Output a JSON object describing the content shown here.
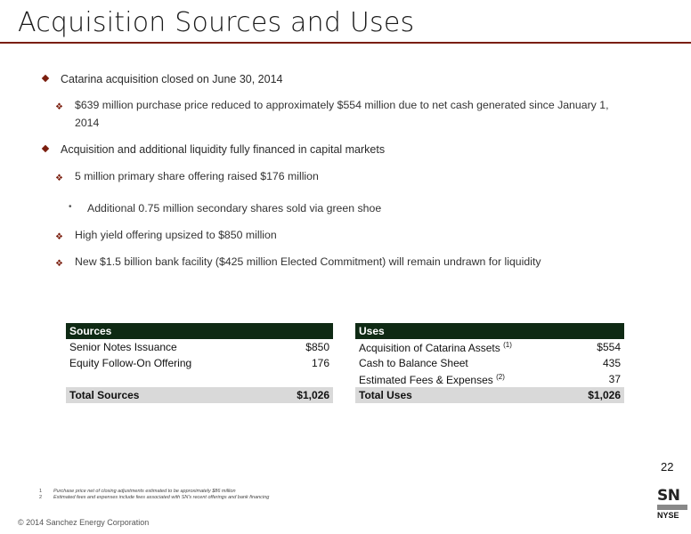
{
  "title": "Acquisition Sources and Uses",
  "bullets": {
    "b1": "Catarina acquisition closed on June 30, 2014",
    "b1a_line1": "$639 million purchase price reduced to approximately $554 million due to net cash generated since January 1,",
    "b1a_line2": "2014",
    "b2": "Acquisition and additional liquidity fully financed in capital markets",
    "b2a": "5 million primary share offering raised $176 million",
    "b2a_i": "Additional 0.75 million secondary shares sold via green shoe",
    "b2b": "High yield offering upsized to $850 million",
    "b2c": "New $1.5 billion bank facility ($425 million Elected Commitment) will remain undrawn for liquidity"
  },
  "sources": {
    "header": "Sources",
    "rows": [
      {
        "label": "Senior Notes Issuance",
        "value": "$850"
      },
      {
        "label": "Equity Follow-On Offering",
        "value": "176"
      }
    ],
    "total_label": "Total Sources",
    "total_value": "$1,026"
  },
  "uses": {
    "header": "Uses",
    "rows": [
      {
        "label": "Acquisition of Catarina Assets",
        "sup": "(1)",
        "value": "$554"
      },
      {
        "label": "Cash to Balance Sheet",
        "sup": "",
        "value": "435"
      },
      {
        "label": "Estimated Fees & Expenses",
        "sup": "(2)",
        "value": "37"
      }
    ],
    "total_label": "Total Uses",
    "total_value": "$1,026"
  },
  "page_number": "22",
  "footnotes": [
    {
      "n": "1",
      "text": "Purchase price net of closing adjustments estimated to be approximately $86 million"
    },
    {
      "n": "2",
      "text": "Estimated fees and expenses include fees associated with SN's recent offerings and bank financing"
    }
  ],
  "copyright": "© 2014 Sanchez Energy Corporation",
  "logo": {
    "ticker": "SN",
    "listed": "LISTED",
    "exchange": "NYSE"
  },
  "colors": {
    "accent": "#7a1e0e",
    "table_header": "#0f2a14",
    "total_row": "#d9d9d9"
  }
}
